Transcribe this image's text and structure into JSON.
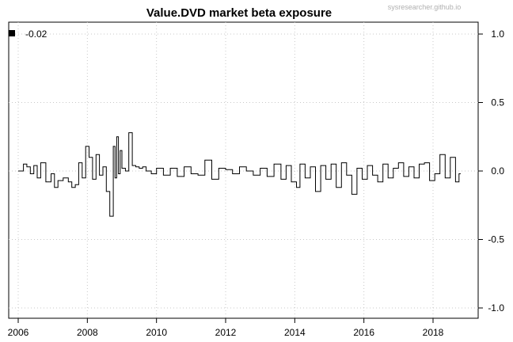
{
  "chart_data": {
    "type": "line",
    "title": "Value.DVD market beta exposure",
    "xlabel": "",
    "ylabel": "",
    "watermark": "sysresearcher.github.io",
    "xlim": [
      2006,
      2018.85
    ],
    "ylim": [
      -1.0,
      1.0
    ],
    "x_ticks": [
      2006,
      2008,
      2010,
      2012,
      2014,
      2016,
      2018
    ],
    "y_ticks": [
      1.0,
      0.5,
      0.0,
      -0.5,
      -1.0
    ],
    "y_tick_labels": [
      "1.0",
      "0.5",
      "0.0",
      "-0.5",
      "-1.0"
    ],
    "y_axis_side": "right",
    "grid": true,
    "legend": {
      "position": "top-left",
      "entries": [
        {
          "label": "-0.02",
          "color": "#000000"
        }
      ]
    },
    "series": [
      {
        "color": "#000000",
        "x": [
          2006.0,
          2006.15,
          2006.25,
          2006.35,
          2006.45,
          2006.55,
          2006.65,
          2006.8,
          2006.95,
          2007.05,
          2007.15,
          2007.3,
          2007.45,
          2007.55,
          2007.65,
          2007.75,
          2007.85,
          2007.95,
          2008.05,
          2008.15,
          2008.25,
          2008.35,
          2008.45,
          2008.55,
          2008.65,
          2008.75,
          2008.8,
          2008.85,
          2008.9,
          2008.95,
          2009.0,
          2009.1,
          2009.2,
          2009.3,
          2009.4,
          2009.5,
          2009.6,
          2009.7,
          2009.85,
          2010.0,
          2010.2,
          2010.4,
          2010.6,
          2010.8,
          2011.0,
          2011.2,
          2011.4,
          2011.6,
          2011.8,
          2012.0,
          2012.2,
          2012.4,
          2012.6,
          2012.8,
          2013.0,
          2013.2,
          2013.4,
          2013.6,
          2013.75,
          2013.9,
          2014.05,
          2014.15,
          2014.3,
          2014.45,
          2014.6,
          2014.75,
          2014.9,
          2015.05,
          2015.2,
          2015.35,
          2015.5,
          2015.65,
          2015.8,
          2015.95,
          2016.1,
          2016.25,
          2016.4,
          2016.55,
          2016.7,
          2016.85,
          2017.0,
          2017.15,
          2017.3,
          2017.45,
          2017.6,
          2017.75,
          2017.9,
          2018.05,
          2018.2,
          2018.35,
          2018.5,
          2018.65,
          2018.75,
          2018.8
        ],
        "y": [
          0.0,
          0.05,
          0.03,
          -0.02,
          0.04,
          -0.05,
          0.06,
          -0.08,
          -0.02,
          -0.12,
          -0.07,
          -0.05,
          -0.08,
          -0.12,
          -0.1,
          0.06,
          -0.05,
          0.18,
          0.1,
          -0.06,
          0.12,
          -0.03,
          0.03,
          -0.15,
          -0.33,
          0.18,
          -0.05,
          0.25,
          -0.02,
          0.15,
          0.02,
          0.0,
          0.28,
          0.04,
          0.03,
          0.02,
          0.03,
          0.0,
          -0.02,
          0.02,
          -0.03,
          0.02,
          -0.04,
          0.03,
          -0.02,
          -0.03,
          0.08,
          -0.06,
          0.02,
          0.01,
          -0.02,
          0.03,
          0.0,
          -0.03,
          0.02,
          -0.04,
          0.05,
          -0.06,
          0.04,
          -0.08,
          -0.12,
          0.05,
          -0.05,
          0.03,
          -0.15,
          0.04,
          -0.06,
          0.05,
          -0.12,
          0.06,
          -0.03,
          -0.17,
          0.02,
          -0.06,
          0.04,
          -0.03,
          -0.08,
          0.05,
          -0.05,
          0.02,
          0.06,
          -0.04,
          0.03,
          -0.05,
          0.05,
          0.06,
          -0.07,
          -0.02,
          0.12,
          -0.05,
          0.1,
          -0.08,
          -0.02,
          -0.02
        ]
      }
    ]
  }
}
